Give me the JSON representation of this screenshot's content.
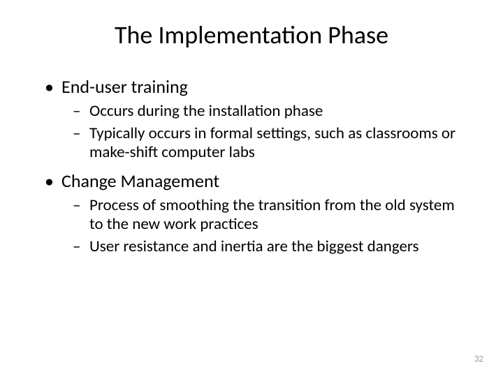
{
  "slide": {
    "title": "The Implementation Phase",
    "bullets": [
      {
        "text": "End-user training",
        "sub": [
          "Occurs during the installation phase",
          "Typically occurs in formal settings, such as classrooms or make-shift computer labs"
        ]
      },
      {
        "text": "Change Management",
        "sub": [
          "Process of smoothing the transition from the old system to the new work practices",
          "User resistance and inertia are the biggest dangers"
        ]
      }
    ],
    "page_number": "32",
    "colors": {
      "background": "#ffffff",
      "text": "#000000",
      "page_number": "#9a9a9a"
    },
    "fonts": {
      "title_size": 36,
      "level1_size": 26,
      "level2_size": 23,
      "page_number_size": 13
    }
  }
}
